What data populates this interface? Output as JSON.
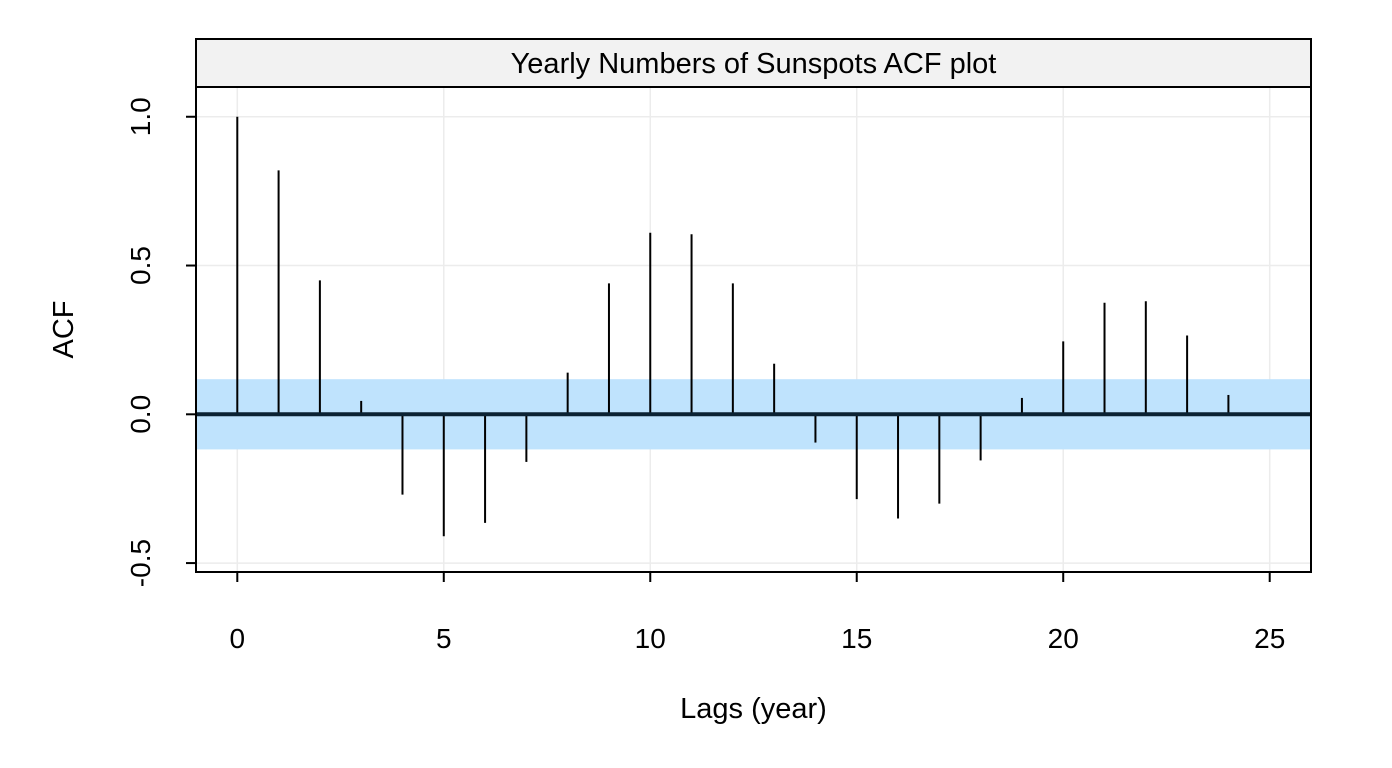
{
  "chart_data": {
    "type": "bar",
    "title": "Yearly Numbers of Sunspots ACF plot",
    "xlabel": "Lags (year)",
    "ylabel": "ACF",
    "xlim": [
      -1,
      26
    ],
    "ylim": [
      -0.53,
      1.1
    ],
    "x_ticks": [
      "0",
      "5",
      "10",
      "15",
      "20",
      "25"
    ],
    "y_ticks": [
      "-0.5",
      "0.0",
      "0.5",
      "1.0"
    ],
    "grid": true,
    "confidence_band": [
      -0.118,
      0.118
    ],
    "lags": [
      0,
      1,
      2,
      3,
      4,
      5,
      6,
      7,
      8,
      9,
      10,
      11,
      12,
      13,
      14,
      15,
      16,
      17,
      18,
      19,
      20,
      21,
      22,
      23,
      24
    ],
    "values": [
      1.0,
      0.82,
      0.45,
      0.045,
      -0.27,
      -0.41,
      -0.365,
      -0.16,
      0.14,
      0.44,
      0.61,
      0.605,
      0.44,
      0.17,
      -0.095,
      -0.285,
      -0.35,
      -0.3,
      -0.155,
      0.055,
      0.245,
      0.375,
      0.38,
      0.265,
      0.065
    ],
    "colors": {
      "band": "#bfe3fd",
      "zero_line": "#0b2233",
      "strip": "#f2f2f2",
      "grid": "#ececec"
    }
  }
}
